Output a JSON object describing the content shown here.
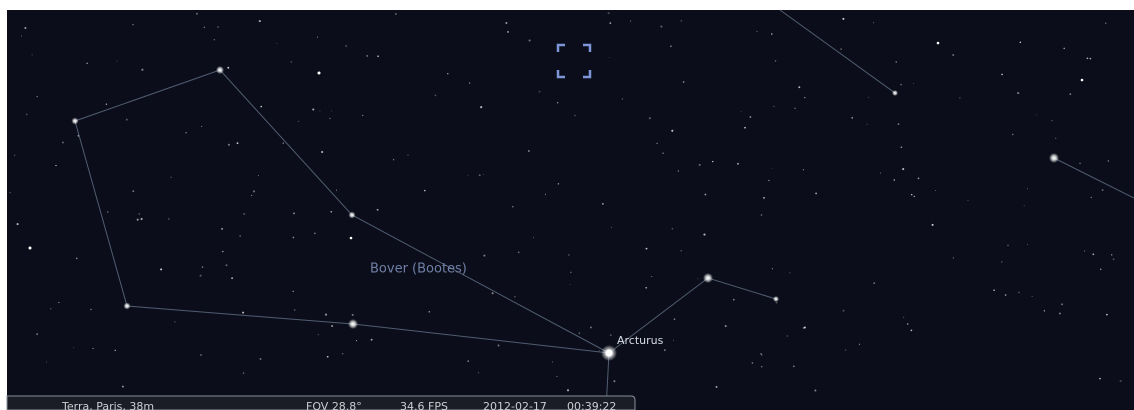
{
  "sky": {
    "constellation_label": "Bover (Bootes)",
    "star_label": "Arcturus"
  },
  "status_bar": {
    "location": "Terra, Paris, 38m",
    "fov": "FOV 28.8°",
    "fps": "34.6 FPS",
    "date": "2012-02-17",
    "time": "00:39:22"
  }
}
